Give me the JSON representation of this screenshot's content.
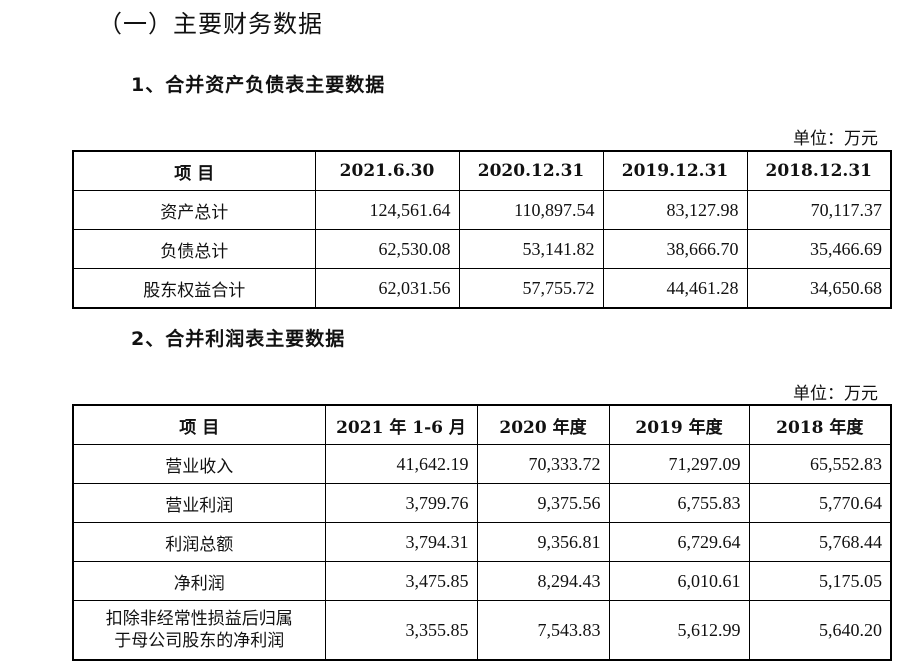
{
  "section_title": "（一）主要财务数据",
  "balance_sheet": {
    "title": "1、合并资产负债表主要数据",
    "unit": "单位：万元",
    "headers": [
      "项 目",
      "2021.6.30",
      "2020.12.31",
      "2019.12.31",
      "2018.12.31"
    ],
    "rows": [
      {
        "label": "资产总计",
        "values": [
          "124,561.64",
          "110,897.54",
          "83,127.98",
          "70,117.37"
        ]
      },
      {
        "label": "负债总计",
        "values": [
          "62,530.08",
          "53,141.82",
          "38,666.70",
          "35,466.69"
        ]
      },
      {
        "label": "股东权益合计",
        "values": [
          "62,031.56",
          "57,755.72",
          "44,461.28",
          "34,650.68"
        ]
      }
    ]
  },
  "income_statement": {
    "title": "2、合并利润表主要数据",
    "unit": "单位：万元",
    "headers": [
      "项 目",
      "2021 年 1-6 月",
      "2020 年度",
      "2019 年度",
      "2018 年度"
    ],
    "rows": [
      {
        "label": "营业收入",
        "values": [
          "41,642.19",
          "70,333.72",
          "71,297.09",
          "65,552.83"
        ]
      },
      {
        "label": "营业利润",
        "values": [
          "3,799.76",
          "9,375.56",
          "6,755.83",
          "5,770.64"
        ]
      },
      {
        "label": "利润总额",
        "values": [
          "3,794.31",
          "9,356.81",
          "6,729.64",
          "5,768.44"
        ]
      },
      {
        "label": "净利润",
        "values": [
          "3,475.85",
          "8,294.43",
          "6,010.61",
          "5,175.05"
        ]
      },
      {
        "label": "扣除非经常性损益后归属于母公司股东的净利润",
        "label_line1": "扣除非经常性损益后归属",
        "label_line2": "于母公司股东的净利润",
        "values": [
          "3,355.85",
          "7,543.83",
          "5,612.99",
          "5,640.20"
        ]
      }
    ]
  }
}
